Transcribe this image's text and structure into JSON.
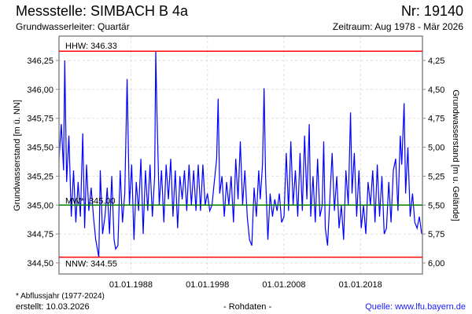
{
  "header": {
    "title": "Messstelle: SIMBACH B 4a",
    "number": "Nr: 19140",
    "aquifer": "Grundwasserleiter: Quartär",
    "period": "Zeitraum: Aug 1978 - Mär 2026"
  },
  "footer": {
    "note": "* Abflussjahr (1977-2024)",
    "created": "erstellt:  10.03.2026",
    "data_type": "- Rohdaten -",
    "source": "Quelle: www.lfu.bayern.de"
  },
  "chart_data": {
    "type": "line",
    "ylabel": "Grundwasserstand [m ü. NN]",
    "y2label": "Grundwasserstand [m u. Gelände]",
    "xlim": [
      1978.6,
      2026.1
    ],
    "ylim": [
      344.43,
      346.52
    ],
    "ground_level": 350.5,
    "x_ticks": [
      {
        "value": 1988,
        "label": "01.01.1988"
      },
      {
        "value": 1998,
        "label": "01.01.1998"
      },
      {
        "value": 2008,
        "label": "01.01.2008"
      },
      {
        "value": 2018,
        "label": "01.01.2018"
      }
    ],
    "y_ticks": [
      {
        "value": 344.5,
        "label": "344,50"
      },
      {
        "value": 344.75,
        "label": "344,75"
      },
      {
        "value": 345.0,
        "label": "345,00"
      },
      {
        "value": 345.25,
        "label": "345,25"
      },
      {
        "value": 345.5,
        "label": "345,50"
      },
      {
        "value": 345.75,
        "label": "345,75"
      },
      {
        "value": 346.0,
        "label": "346,00"
      },
      {
        "value": 346.25,
        "label": "346,25"
      }
    ],
    "y2_ticks": [
      {
        "value": 344.5,
        "label": "6,00"
      },
      {
        "value": 344.75,
        "label": "5,75"
      },
      {
        "value": 345.0,
        "label": "5,50"
      },
      {
        "value": 345.25,
        "label": "5,25"
      },
      {
        "value": 345.5,
        "label": "5,00"
      },
      {
        "value": 345.75,
        "label": "4,75"
      },
      {
        "value": 346.0,
        "label": "4,50"
      },
      {
        "value": 346.25,
        "label": "4,25"
      }
    ],
    "reference_lines": [
      {
        "name": "HHW",
        "value": 346.33,
        "label": "HHW: 346.33",
        "color": "#ff0000"
      },
      {
        "name": "MW",
        "value": 345.0,
        "label": "MW*: 345.00",
        "color": "#008000"
      },
      {
        "name": "NNW",
        "value": 344.55,
        "label": "NNW: 344.55",
        "color": "#ff0000"
      }
    ],
    "grid": true,
    "series": [
      {
        "name": "Grundwasserstand",
        "color": "#0000ff",
        "x": [
          1978.6,
          1978.9,
          1979.2,
          1979.35,
          1979.6,
          1979.9,
          1980.2,
          1980.5,
          1980.8,
          1981.1,
          1981.4,
          1981.7,
          1981.95,
          1982.2,
          1982.5,
          1982.8,
          1983.1,
          1983.4,
          1983.8,
          1984.0,
          1984.3,
          1984.6,
          1984.9,
          1985.2,
          1985.5,
          1985.8,
          1986.0,
          1986.3,
          1986.6,
          1986.9,
          1987.2,
          1987.5,
          1987.8,
          1988.1,
          1988.4,
          1988.7,
          1989.0,
          1989.3,
          1989.6,
          1989.9,
          1990.2,
          1990.5,
          1990.8,
          1991.1,
          1991.25,
          1991.4,
          1991.7,
          1992.0,
          1992.3,
          1992.6,
          1992.9,
          1993.2,
          1993.5,
          1993.8,
          1994.1,
          1994.4,
          1994.7,
          1995.0,
          1995.3,
          1995.6,
          1995.9,
          1996.2,
          1996.5,
          1996.8,
          1997.1,
          1997.4,
          1997.7,
          1998.0,
          1998.3,
          1998.6,
          1998.9,
          1999.2,
          1999.4,
          1999.6,
          1999.9,
          2000.2,
          2000.5,
          2000.8,
          2001.1,
          2001.4,
          2001.7,
          2002.0,
          2002.3,
          2002.6,
          2002.9,
          2003.2,
          2003.5,
          2003.8,
          2004.1,
          2004.4,
          2004.7,
          2004.9,
          2005.2,
          2005.4,
          2005.6,
          2005.9,
          2006.2,
          2006.5,
          2006.8,
          2007.1,
          2007.4,
          2007.7,
          2008.0,
          2008.3,
          2008.6,
          2008.9,
          2009.2,
          2009.5,
          2009.8,
          2010.1,
          2010.4,
          2010.7,
          2011.0,
          2011.3,
          2011.5,
          2011.8,
          2012.1,
          2012.4,
          2012.7,
          2013.0,
          2013.2,
          2013.4,
          2013.7,
          2014.0,
          2014.3,
          2014.6,
          2014.9,
          2015.2,
          2015.5,
          2015.8,
          2016.1,
          2016.4,
          2016.7,
          2016.9,
          2017.2,
          2017.5,
          2017.8,
          2018.1,
          2018.4,
          2018.7,
          2019.0,
          2019.3,
          2019.6,
          2019.9,
          2020.2,
          2020.5,
          2020.8,
          2021.1,
          2021.4,
          2021.7,
          2022.0,
          2022.3,
          2022.6,
          2022.9,
          2023.2,
          2023.4,
          2023.7,
          2023.9,
          2024.2,
          2024.5,
          2024.8,
          2025.1,
          2025.4,
          2025.7,
          2026.0
        ],
        "y": [
          345.4,
          345.7,
          345.3,
          346.25,
          345.2,
          345.6,
          344.9,
          345.3,
          344.85,
          345.2,
          344.9,
          345.62,
          344.8,
          345.35,
          344.95,
          345.15,
          344.9,
          344.7,
          344.55,
          345.3,
          344.75,
          344.9,
          345.15,
          344.75,
          345.25,
          344.7,
          344.62,
          344.65,
          345.3,
          344.85,
          345.1,
          346.09,
          345.0,
          345.35,
          344.7,
          345.2,
          344.95,
          345.4,
          344.75,
          345.3,
          344.95,
          345.35,
          344.9,
          345.25,
          346.33,
          345.8,
          345.0,
          345.3,
          344.85,
          345.35,
          345.05,
          345.4,
          344.9,
          345.3,
          344.8,
          345.25,
          345.05,
          345.3,
          344.95,
          345.35,
          345.0,
          345.3,
          344.95,
          345.35,
          344.95,
          345.35,
          345.0,
          345.1,
          344.95,
          345.0,
          345.2,
          345.4,
          345.92,
          345.1,
          345.25,
          344.9,
          345.2,
          345.0,
          345.25,
          344.85,
          345.4,
          345.05,
          345.55,
          345.0,
          345.3,
          344.9,
          344.7,
          344.65,
          345.15,
          344.9,
          345.3,
          345.05,
          345.35,
          346.01,
          345.25,
          344.7,
          345.1,
          344.9,
          345.05,
          344.95,
          345.1,
          344.85,
          344.9,
          345.45,
          344.95,
          345.55,
          345.0,
          345.3,
          344.9,
          345.45,
          344.95,
          345.6,
          345.05,
          345.7,
          344.9,
          345.25,
          344.85,
          345.4,
          344.9,
          345.0,
          345.55,
          344.8,
          344.65,
          345.05,
          345.45,
          344.95,
          345.25,
          344.8,
          345.0,
          344.7,
          345.3,
          345.0,
          345.8,
          345.1,
          345.45,
          344.9,
          345.3,
          344.8,
          345.0,
          344.75,
          345.2,
          345.0,
          345.3,
          344.85,
          345.35,
          344.9,
          345.25,
          344.75,
          344.8,
          345.2,
          344.85,
          345.3,
          345.4,
          344.95,
          345.6,
          345.35,
          345.88,
          345.1,
          345.5,
          344.9,
          345.1,
          344.85,
          344.8,
          344.9,
          344.75
        ]
      }
    ]
  }
}
